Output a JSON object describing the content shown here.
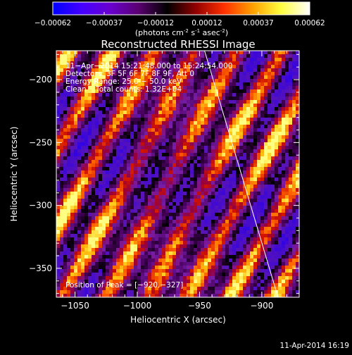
{
  "colorbar": {
    "ticks": [
      "-0.00062",
      "-0.00037",
      "-0.00012",
      "0.00012",
      "0.00037",
      "0.00062"
    ],
    "unit_prefix": "(photons cm",
    "unit_exp1": "-2",
    "unit_mid": " s",
    "unit_exp2": "-1",
    "unit_mid2": " asec",
    "unit_exp3": "-2",
    "unit_suffix": ")",
    "stops": [
      "#0000ff",
      "#4400ff",
      "#6a00d0",
      "#5a0070",
      "#000000",
      "#900000",
      "#ff3000",
      "#ffa000",
      "#ffff40",
      "#ffffff"
    ]
  },
  "chart_data": {
    "type": "heatmap",
    "title": "Reconstructed RHESSI Image",
    "xlabel": "Heliocentric X (arcsec)",
    "ylabel": "Heliocentric Y (arcsec)",
    "xlim": [
      -1065,
      -870
    ],
    "ylim": [
      -373,
      -177
    ],
    "xticks": [
      -1050,
      -1000,
      -950,
      -900
    ],
    "yticks": [
      -350,
      -300,
      -250,
      -200
    ],
    "xtick_labels": [
      "−1050",
      "−1000",
      "−950",
      "−900"
    ],
    "ytick_labels": [
      "−350",
      "−300",
      "−250",
      "−200"
    ],
    "value_range": [
      -0.00062,
      0.00062
    ],
    "annotations": [
      "11−Apr−2014 15:21:48.000 to 15:24:54.000",
      "Detectors: 3F 5F 6F 7F 8F 9F, Att 0",
      "Energy Range: 25.0 − 50.0 keV",
      "Clean    Total counts: 1.32E+04"
    ],
    "peak_label": "Position of Peak = [−920,−327]",
    "peak": [
      -920,
      -327
    ],
    "limb_line": [
      [
        -946,
        -177
      ],
      [
        -887,
        -373
      ]
    ],
    "grid": false
  },
  "footer": {
    "timestamp": "11-Apr-2014 16:19"
  }
}
